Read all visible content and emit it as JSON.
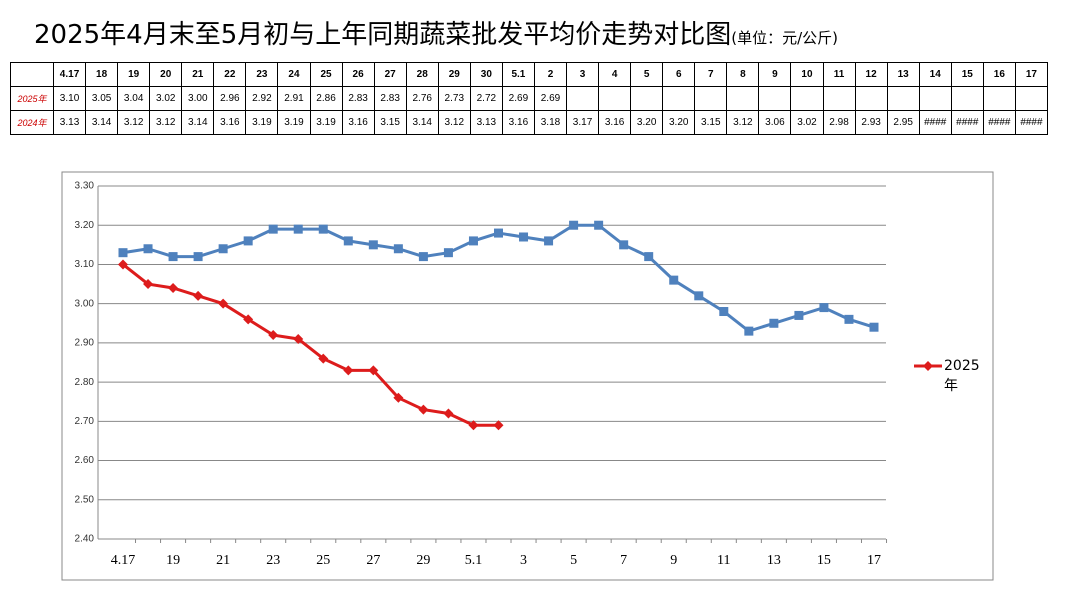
{
  "header": {
    "title": "2025年4月末至5月初与上年同期蔬菜批发平均价走势对比图",
    "unit": "(单位：元/公斤)"
  },
  "table": {
    "header": [
      "4.17",
      "18",
      "19",
      "20",
      "21",
      "22",
      "23",
      "24",
      "25",
      "26",
      "27",
      "28",
      "29",
      "30",
      "5.1",
      "2",
      "3",
      "4",
      "5",
      "6",
      "7",
      "8",
      "9",
      "10",
      "11",
      "12",
      "13",
      "14",
      "15",
      "16",
      "17"
    ],
    "rows": [
      {
        "label": "2025年",
        "cells": [
          "3.10",
          "3.05",
          "3.04",
          "3.02",
          "3.00",
          "2.96",
          "2.92",
          "2.91",
          "2.86",
          "2.83",
          "2.83",
          "2.76",
          "2.73",
          "2.72",
          "2.69",
          "2.69",
          null,
          null,
          null,
          null,
          null,
          null,
          null,
          null,
          null,
          null,
          null,
          null,
          null,
          null,
          null
        ]
      },
      {
        "label": "2024年",
        "cells": [
          "3.13",
          "3.14",
          "3.12",
          "3.12",
          "3.14",
          "3.16",
          "3.19",
          "3.19",
          "3.19",
          "3.16",
          "3.15",
          "3.14",
          "3.12",
          "3.13",
          "3.16",
          "3.18",
          "3.17",
          "3.16",
          "3.20",
          "3.20",
          "3.15",
          "3.12",
          "3.06",
          "3.02",
          "2.98",
          "2.93",
          "2.95",
          "####",
          "####",
          "####",
          "####"
        ]
      }
    ]
  },
  "chart_data": {
    "type": "line",
    "categories": [
      "4.17",
      null,
      "19",
      null,
      "21",
      null,
      "23",
      null,
      "25",
      null,
      "27",
      null,
      "29",
      null,
      "5.1",
      null,
      "3",
      null,
      "5",
      null,
      "7",
      null,
      "9",
      null,
      "11",
      null,
      "13",
      null,
      "15",
      null,
      "17"
    ],
    "series": [
      {
        "color": "#4f81bd",
        "marker": "square",
        "values": [
          3.13,
          3.14,
          3.12,
          3.12,
          3.14,
          3.16,
          3.19,
          3.19,
          3.19,
          3.16,
          3.15,
          3.14,
          3.12,
          3.13,
          3.16,
          3.18,
          3.17,
          3.16,
          3.2,
          3.2,
          3.15,
          3.12,
          3.06,
          3.02,
          2.98,
          2.93,
          2.95,
          2.97,
          2.99,
          2.96,
          2.94
        ]
      },
      {
        "name": "2025年",
        "color": "#dd1c1c",
        "marker": "diamond",
        "values": [
          3.1,
          3.05,
          3.04,
          3.02,
          3.0,
          2.96,
          2.92,
          2.91,
          2.86,
          2.83,
          2.83,
          2.76,
          2.73,
          2.72,
          2.69,
          2.69,
          null,
          null,
          null,
          null,
          null,
          null,
          null,
          null,
          null,
          null,
          null,
          null,
          null,
          null,
          null
        ]
      }
    ],
    "ylim": [
      2.4,
      3.3
    ],
    "yticks": [
      {
        "value": 2.4,
        "label": "2.40"
      },
      {
        "value": 2.5,
        "label": "2.50"
      },
      {
        "value": 2.6,
        "label": "2.60"
      },
      {
        "value": 2.7,
        "label": "2.70"
      },
      {
        "value": 2.8,
        "label": "2.80"
      },
      {
        "value": 2.9,
        "label": "2.90"
      },
      {
        "value": 3.0,
        "label": "3.00"
      },
      {
        "value": 3.1,
        "label": "3.10"
      },
      {
        "value": 3.2,
        "label": "3.20"
      },
      {
        "value": 3.3,
        "label": "3.30"
      }
    ],
    "grid": true,
    "legend": "right"
  }
}
